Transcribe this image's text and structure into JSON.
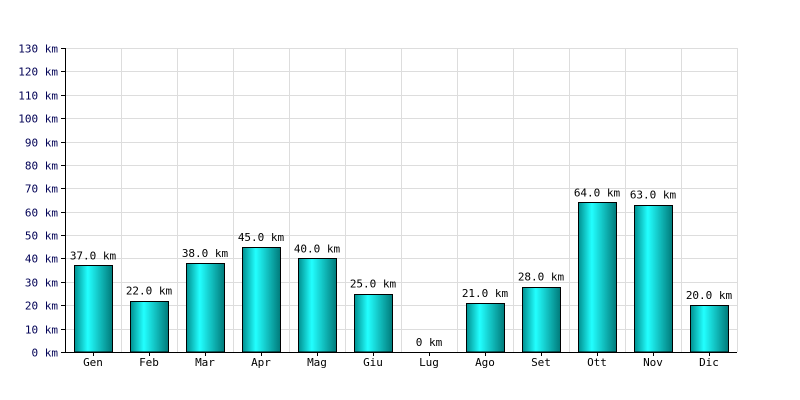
{
  "chart_data": {
    "type": "bar",
    "categories": [
      "Gen",
      "Feb",
      "Mar",
      "Apr",
      "Mag",
      "Giu",
      "Lug",
      "Ago",
      "Set",
      "Ott",
      "Nov",
      "Dic"
    ],
    "values": [
      37,
      22,
      38,
      45,
      40,
      25,
      0,
      21,
      28,
      64,
      63,
      20
    ],
    "data_labels": [
      "37.0 km",
      "22.0 km",
      "38.0 km",
      "45.0 km",
      "40.0 km",
      "25.0 km",
      "0 km",
      "21.0 km",
      "28.0 km",
      "64.0 km",
      "63.0 km",
      "20.0 km"
    ],
    "y_tick_labels": [
      "0 km",
      "10 km",
      "20 km",
      "30 km",
      "40 km",
      "50 km",
      "60 km",
      "70 km",
      "80 km",
      "90 km",
      "100 km",
      "110 km",
      "120 km",
      "130 km"
    ],
    "ylim": [
      0,
      130
    ],
    "y_step": 10,
    "title": "",
    "xlabel": "",
    "ylabel": "",
    "grid": true,
    "legend": "none",
    "colors": {
      "bar_light": "#22ffff",
      "bar_dark": "#009999",
      "grid": "#dddddd",
      "y_tick_text": "#000055"
    }
  }
}
